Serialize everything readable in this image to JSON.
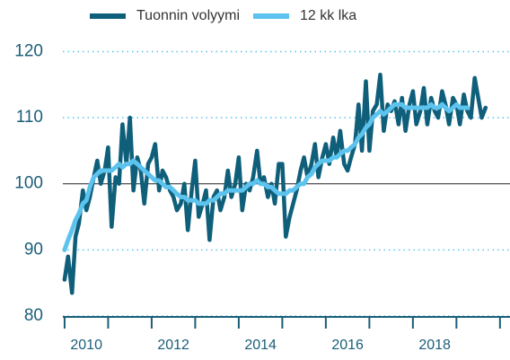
{
  "chart_data": {
    "type": "line",
    "x": [
      2010.0,
      2010.08,
      2010.17,
      2010.25,
      2010.33,
      2010.42,
      2010.5,
      2010.58,
      2010.67,
      2010.75,
      2010.83,
      2010.92,
      2011.0,
      2011.08,
      2011.17,
      2011.25,
      2011.33,
      2011.42,
      2011.5,
      2011.58,
      2011.67,
      2011.75,
      2011.83,
      2011.92,
      2012.0,
      2012.08,
      2012.17,
      2012.25,
      2012.33,
      2012.42,
      2012.5,
      2012.58,
      2012.67,
      2012.75,
      2012.83,
      2012.92,
      2013.0,
      2013.08,
      2013.17,
      2013.25,
      2013.33,
      2013.42,
      2013.5,
      2013.58,
      2013.67,
      2013.75,
      2013.83,
      2013.92,
      2014.0,
      2014.08,
      2014.17,
      2014.25,
      2014.33,
      2014.42,
      2014.5,
      2014.58,
      2014.67,
      2014.75,
      2014.83,
      2014.92,
      2015.0,
      2015.08,
      2015.17,
      2015.25,
      2015.33,
      2015.42,
      2015.5,
      2015.58,
      2015.67,
      2015.75,
      2015.83,
      2015.92,
      2016.0,
      2016.08,
      2016.17,
      2016.25,
      2016.33,
      2016.42,
      2016.5,
      2016.58,
      2016.67,
      2016.75,
      2016.83,
      2016.92,
      2017.0,
      2017.08,
      2017.17,
      2017.25,
      2017.33,
      2017.42,
      2017.5,
      2017.58,
      2017.67,
      2017.75,
      2017.83,
      2017.92,
      2018.0,
      2018.08,
      2018.17,
      2018.25,
      2018.33,
      2018.42,
      2018.5,
      2018.58,
      2018.67,
      2018.75,
      2018.83,
      2018.92,
      2019.0,
      2019.08,
      2019.17,
      2019.25,
      2019.33,
      2019.42,
      2019.5,
      2019.58,
      2019.67
    ],
    "series": [
      {
        "name": "Tuonnin volyymi",
        "color": "#0f5f7a",
        "values": [
          85.5,
          89,
          83.5,
          92,
          94,
          99,
          96,
          98,
          101,
          103.5,
          100,
          102,
          105.5,
          93.5,
          101,
          100,
          109,
          103,
          110,
          99,
          104,
          102,
          97,
          103,
          104,
          106,
          99,
          102,
          101,
          99,
          98,
          96,
          97,
          100,
          93,
          99,
          103.5,
          95,
          97,
          99,
          91.5,
          98,
          99,
          96,
          98,
          102,
          98,
          100,
          104,
          96,
          100,
          99,
          101,
          105,
          100,
          101,
          98,
          100,
          97,
          103,
          103,
          92,
          95,
          97,
          99,
          102,
          104,
          101,
          103,
          106,
          101,
          104,
          106,
          103,
          107,
          104,
          108,
          103,
          102,
          104,
          106,
          112,
          105,
          115.5,
          105,
          111,
          112,
          116.5,
          108,
          112,
          111,
          112.5,
          109,
          113,
          108,
          112,
          114,
          109,
          111,
          114.5,
          109,
          113,
          111,
          110,
          114,
          112,
          109,
          113,
          112,
          109,
          113.5,
          111,
          110,
          116,
          113,
          110,
          111.5
        ]
      },
      {
        "name": "12 kk lka",
        "color": "#5bc3ee",
        "values": [
          90,
          91.5,
          93,
          94.5,
          95.5,
          97,
          97.5,
          99.5,
          101,
          101.5,
          102,
          102,
          102,
          102,
          102.5,
          103,
          102.5,
          103,
          103,
          103.5,
          103,
          102.5,
          102,
          101.5,
          101,
          100.5,
          100.5,
          100,
          99.5,
          99.5,
          99,
          98.5,
          98,
          98,
          97.5,
          97.5,
          97.5,
          97,
          97,
          97,
          97.5,
          97.5,
          98,
          98.5,
          98.5,
          99,
          99,
          99,
          99,
          99,
          99.5,
          100,
          100,
          100.5,
          100,
          100,
          99.5,
          99.5,
          99,
          98.5,
          98.5,
          98.5,
          99,
          99,
          99.5,
          100,
          100,
          101,
          101.5,
          102.5,
          103,
          103.5,
          103.5,
          103.5,
          104,
          104,
          104.5,
          105,
          105,
          105.5,
          106,
          107,
          107.5,
          108.5,
          109,
          110,
          110.5,
          111,
          110.5,
          111,
          111.5,
          112,
          112,
          112,
          111.5,
          111.5,
          111.5,
          111.5,
          111.5,
          111.5,
          111.5,
          112,
          111.5,
          111.5,
          112,
          111.5,
          111,
          111.5,
          112,
          111.5,
          111.5,
          111.5,
          null,
          null,
          null,
          null,
          null
        ]
      }
    ],
    "xlim": [
      2009.96,
      2020.23
    ],
    "xticks": [
      {
        "value": 2010.5,
        "label": "2010"
      },
      {
        "value": 2012.5,
        "label": "2012"
      },
      {
        "value": 2014.5,
        "label": "2014"
      },
      {
        "value": 2016.5,
        "label": "2016"
      },
      {
        "value": 2018.5,
        "label": "2018"
      }
    ],
    "xtick_marks": [
      2010,
      2011,
      2012,
      2013,
      2014,
      2015,
      2016,
      2017,
      2018,
      2019,
      2020
    ],
    "ylim": [
      80,
      124
    ],
    "yticks": [
      80,
      90,
      100,
      110,
      120
    ],
    "reference_line": 100,
    "grid": true,
    "legend": "top"
  }
}
